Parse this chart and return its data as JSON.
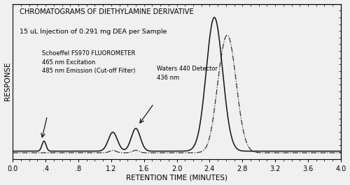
{
  "title_line1": "CHROMATOGRAMS OF DIETHYLAMINE DERIVATIVE",
  "title_line2": "15 uL Injection of 0.291 mg DEA per Sample",
  "xlabel": "RETENTION TIME (MINUTES)",
  "ylabel": "RESPONSE",
  "xlim": [
    0.0,
    4.0
  ],
  "ylim": [
    -0.05,
    1.1
  ],
  "xticks": [
    0.0,
    0.4,
    0.8,
    1.2,
    1.6,
    2.0,
    2.4,
    2.8,
    3.2,
    3.6,
    4.0
  ],
  "xticklabels": [
    "0.0",
    ".4",
    ".8",
    "1.2",
    "1.6",
    "2.0",
    "2.4",
    "2.8",
    "3.2",
    "3.6",
    "4.0"
  ],
  "annotation_fluoro": "Schoeffel FS970 FLUOROMETER\n465 nm Excitation\n485 nm Emission (Cut-off Filter)",
  "annotation_waters": "Waters 440 Detector\n436 nm",
  "bg_color": "#f0f0f0",
  "line_solid_color": "#111111",
  "line_dash_color": "#333333"
}
